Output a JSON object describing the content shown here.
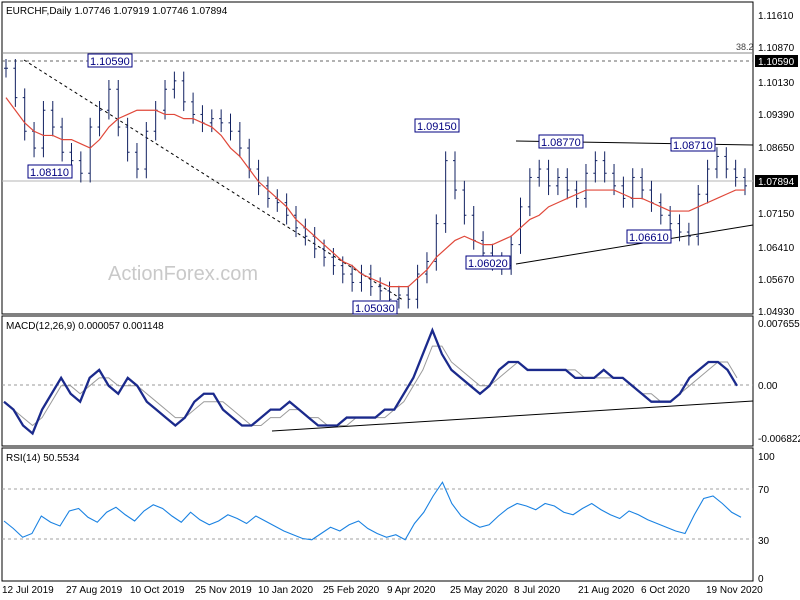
{
  "chart_data": [
    {
      "type": "candlestick",
      "header": "EURCHF,Daily  1.07746 1.07919 1.07746 1.07894",
      "watermark": "ActionForex.com",
      "ylim": [
        1.0492,
        1.1192
      ],
      "y_ticks": [
        "1.11610",
        "1.10870",
        "1.10130",
        "1.09390",
        "1.08650",
        "1.07150",
        "1.06410",
        "1.05670",
        "1.04930"
      ],
      "fib_label": "38.2",
      "fib_level_text": "1.10590",
      "fib_level": 1.1059,
      "current_price_text": "1.07894",
      "current_price": 1.07894,
      "annotations": [
        {
          "text": "1.10590",
          "x": "2019-09-03",
          "y": 1.1059
        },
        {
          "text": "1.08110",
          "x": "2019-08-09",
          "y": 1.0811
        },
        {
          "text": "1.09150",
          "x": "2020-06-05",
          "y": 1.0915
        },
        {
          "text": "1.08770",
          "x": "2020-07-17",
          "y": 1.0877
        },
        {
          "text": "1.08710",
          "x": "2020-11-09",
          "y": 1.0871
        },
        {
          "text": "1.05030",
          "x": "2020-04-14",
          "y": 1.0503
        },
        {
          "text": "1.06020",
          "x": "2020-06-30",
          "y": 1.0602
        },
        {
          "text": "1.06610",
          "x": "2020-10-12",
          "y": 1.0661
        }
      ],
      "price_closes": [
        1.107,
        1.1,
        1.092,
        1.088,
        1.097,
        1.093,
        1.087,
        1.085,
        1.082,
        1.093,
        1.097,
        1.102,
        1.093,
        1.087,
        1.083,
        1.092,
        1.097,
        1.102,
        1.104,
        1.099,
        1.096,
        1.094,
        1.095,
        1.094,
        1.092,
        1.088,
        1.083,
        1.079,
        1.076,
        1.075,
        1.072,
        1.069,
        1.067,
        1.064,
        1.062,
        1.06,
        1.058,
        1.056,
        1.058,
        1.055,
        1.054,
        1.052,
        1.053,
        1.052,
        1.058,
        1.061,
        1.07,
        1.085,
        1.078,
        1.072,
        1.066,
        1.063,
        1.061,
        1.06,
        1.065,
        1.074,
        1.081,
        1.083,
        1.079,
        1.081,
        1.078,
        1.076,
        1.082,
        1.085,
        1.082,
        1.079,
        1.076,
        1.081,
        1.078,
        1.075,
        1.072,
        1.07,
        1.068,
        1.067,
        1.077,
        1.083,
        1.086,
        1.083,
        1.081,
        1.079
      ],
      "ma_values": [
        1.1,
        1.097,
        1.094,
        1.092,
        1.091,
        1.091,
        1.09,
        1.09,
        1.089,
        1.088,
        1.09,
        1.093,
        1.095,
        1.096,
        1.097,
        1.097,
        1.097,
        1.096,
        1.096,
        1.095,
        1.095,
        1.094,
        1.093,
        1.091,
        1.088,
        1.086,
        1.083,
        1.08,
        1.078,
        1.076,
        1.074,
        1.071,
        1.069,
        1.067,
        1.065,
        1.063,
        1.061,
        1.06,
        1.058,
        1.057,
        1.056,
        1.055,
        1.055,
        1.055,
        1.057,
        1.059,
        1.062,
        1.064,
        1.066,
        1.067,
        1.066,
        1.065,
        1.065,
        1.066,
        1.067,
        1.069,
        1.071,
        1.072,
        1.074,
        1.075,
        1.076,
        1.077,
        1.078,
        1.078,
        1.078,
        1.078,
        1.077,
        1.076,
        1.076,
        1.075,
        1.074,
        1.073,
        1.073,
        1.073,
        1.074,
        1.075,
        1.076,
        1.077,
        1.078,
        1.078
      ],
      "trendlines": [
        {
          "style": "dashed",
          "from": [
            "2019-07-15",
            1.1059
          ],
          "to": [
            "2020-04-14",
            1.0503
          ]
        },
        {
          "style": "solid",
          "from": [
            "2019-07-12",
            1.1059
          ],
          "to": [
            "2020-12-04",
            1.1059
          ]
        },
        {
          "style": "solid",
          "from": [
            "2020-07-01",
            1.0877
          ],
          "to": [
            "2020-12-04",
            1.087
          ]
        },
        {
          "style": "solid",
          "from": [
            "2020-06-30",
            1.0602
          ],
          "to": [
            "2020-12-04",
            1.0685
          ]
        }
      ],
      "x_ticks": [
        "12 Jul 2019",
        "27 Aug 2019",
        "10 Oct 2019",
        "25 Nov 2019",
        "10 Jan 2020",
        "25 Feb 2020",
        "9 Apr 2020",
        "25 May 2020",
        "8 Jul 2020",
        "21 Aug 2020",
        "6 Oct 2020",
        "19 Nov 2020"
      ]
    },
    {
      "type": "line",
      "header": "MACD(12,26,9) 0.000057 0.001148",
      "ylim": [
        -0.006822,
        0.007655
      ],
      "y_ticks": [
        "0.007655",
        "0.00",
        "-0.006822"
      ],
      "current_value_text": "0.00",
      "series": [
        {
          "values": [
            -0.002,
            -0.003,
            -0.005,
            -0.006,
            -0.003,
            -0.001,
            0.001,
            -0.001,
            -0.002,
            0.001,
            0.002,
            0.0,
            -0.001,
            0.001,
            0.0,
            -0.002,
            -0.003,
            -0.004,
            -0.005,
            -0.004,
            -0.002,
            -0.001,
            -0.001,
            -0.003,
            -0.004,
            -0.005,
            -0.005,
            -0.004,
            -0.003,
            -0.003,
            -0.002,
            -0.003,
            -0.004,
            -0.005,
            -0.005,
            -0.005,
            -0.004,
            -0.004,
            -0.004,
            -0.004,
            -0.003,
            -0.003,
            -0.001,
            0.001,
            0.004,
            0.007,
            0.004,
            0.002,
            0.001,
            0.0,
            -0.001,
            0.0,
            0.002,
            0.003,
            0.003,
            0.002,
            0.002,
            0.002,
            0.002,
            0.002,
            0.001,
            0.001,
            0.001,
            0.002,
            0.001,
            0.001,
            0.0,
            -0.001,
            -0.002,
            -0.002,
            -0.002,
            -0.001,
            0.001,
            0.002,
            0.003,
            0.003,
            0.002,
            0.0
          ]
        },
        {
          "values": [
            -0.002,
            -0.003,
            -0.004,
            -0.005,
            -0.004,
            -0.002,
            0.0,
            0.0,
            -0.001,
            0.0,
            0.001,
            0.001,
            0.0,
            0.0,
            0.0,
            -0.001,
            -0.002,
            -0.003,
            -0.004,
            -0.004,
            -0.003,
            -0.002,
            -0.002,
            -0.002,
            -0.003,
            -0.004,
            -0.005,
            -0.005,
            -0.004,
            -0.004,
            -0.003,
            -0.003,
            -0.004,
            -0.004,
            -0.005,
            -0.005,
            -0.005,
            -0.004,
            -0.004,
            -0.004,
            -0.004,
            -0.003,
            -0.002,
            0.0,
            0.002,
            0.005,
            0.005,
            0.003,
            0.002,
            0.001,
            0.0,
            0.0,
            0.001,
            0.002,
            0.003,
            0.002,
            0.002,
            0.002,
            0.002,
            0.002,
            0.002,
            0.001,
            0.001,
            0.001,
            0.001,
            0.001,
            0.0,
            -0.001,
            -0.001,
            -0.002,
            -0.002,
            -0.001,
            0.0,
            0.001,
            0.002,
            0.003,
            0.003,
            0.001
          ]
        }
      ],
      "trendlines": [
        {
          "style": "solid",
          "from": [
            "2020-01-02",
            -0.0059
          ],
          "to": [
            "2020-12-04",
            -0.0022
          ]
        }
      ],
      "zero_line": "dashed"
    },
    {
      "type": "line",
      "header": "RSI(14) 50.5534",
      "ylim": [
        0,
        100
      ],
      "y_ticks": [
        "100",
        "70",
        "30",
        "0"
      ],
      "reference_levels": [
        70,
        30
      ],
      "series": [
        {
          "values": [
            48,
            42,
            35,
            38,
            52,
            47,
            44,
            56,
            58,
            51,
            47,
            55,
            59,
            53,
            48,
            56,
            61,
            58,
            52,
            47,
            55,
            49,
            45,
            48,
            53,
            50,
            46,
            52,
            48,
            44,
            40,
            37,
            34,
            33,
            38,
            43,
            40,
            45,
            48,
            42,
            38,
            35,
            37,
            33,
            46,
            55,
            68,
            79,
            62,
            52,
            47,
            43,
            45,
            52,
            58,
            62,
            60,
            57,
            62,
            60,
            55,
            53,
            58,
            62,
            57,
            53,
            50,
            56,
            53,
            49,
            46,
            43,
            40,
            38,
            53,
            66,
            68,
            62,
            55,
            51
          ]
        }
      ]
    }
  ]
}
